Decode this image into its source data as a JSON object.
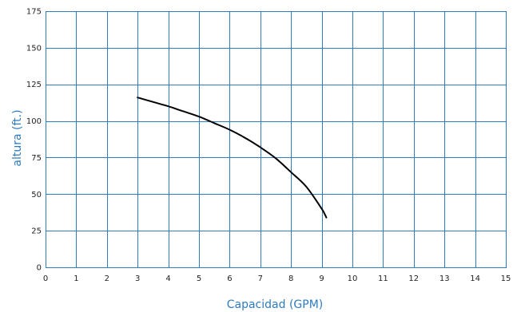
{
  "chart_data": {
    "type": "line",
    "title": "",
    "xlabel": "Capacidad (GPM)",
    "ylabel": "altura (ft.)",
    "xlim": [
      0,
      15
    ],
    "ylim": [
      0,
      175
    ],
    "x_ticks": [
      0,
      1,
      2,
      3,
      4,
      5,
      6,
      7,
      8,
      9,
      10,
      11,
      12,
      13,
      14,
      15
    ],
    "y_ticks": [
      0,
      25,
      50,
      75,
      100,
      125,
      150,
      175
    ],
    "grid": true,
    "series": [
      {
        "x": [
          3.0,
          3.5,
          4.0,
          4.5,
          5.0,
          5.5,
          6.0,
          6.5,
          7.0,
          7.5,
          8.0,
          8.5,
          9.0,
          9.15
        ],
        "y": [
          116,
          113,
          110,
          106.5,
          103,
          98.5,
          94,
          88.5,
          82,
          74.5,
          65,
          55,
          40,
          34
        ]
      }
    ],
    "colors": {
      "grid": "#2e7bbf",
      "axis_label": "#2e7bbf",
      "curve": "#000000",
      "tick_label": "#222222"
    }
  }
}
